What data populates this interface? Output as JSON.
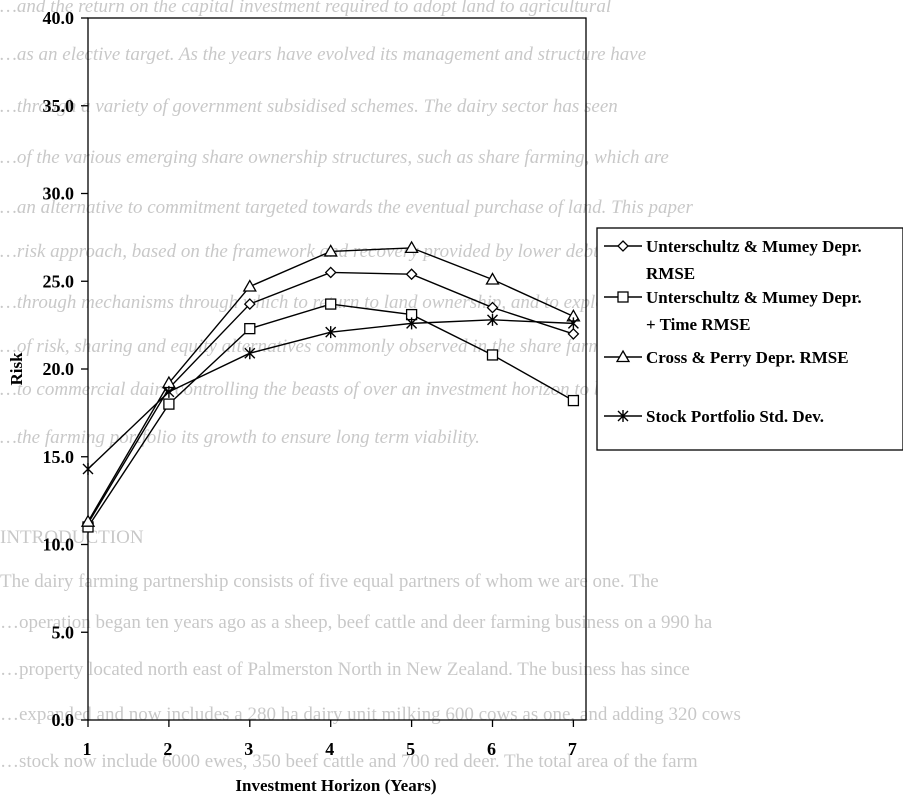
{
  "background_text": [
    {
      "text": "…and the return on the capital investment required to adopt land to agricultural",
      "style": "italic"
    },
    {
      "text": "…as an elective target. As the years have evolved its management and structure have",
      "style": "italic"
    },
    {
      "text": "…through a variety of government subsidised schemes. The dairy sector has seen",
      "style": "italic"
    },
    {
      "text": "…of the various emerging share ownership structures, such as share farming, which are",
      "style": "italic"
    },
    {
      "text": "…an alternative to commitment targeted towards the eventual purchase of land. This paper",
      "style": "italic"
    },
    {
      "text": "…risk approach, based on the framework and recovery provided by lower debt",
      "style": "italic"
    },
    {
      "text": "…through mechanisms through which to return to land ownership, and to explore the viability",
      "style": "italic"
    },
    {
      "text": "…of risk, sharing and equity alternatives commonly observed in the share farming sector",
      "style": "italic"
    },
    {
      "text": "…to commercial dairy controlling the beasts of over an investment horizon to be held",
      "style": "italic"
    },
    {
      "text": "…the farming portfolio its growth to ensure long term viability.",
      "style": "italic"
    },
    {
      "text": "INTRODUCTION",
      "style": "normal"
    },
    {
      "text": "The dairy farming partnership consists of five equal partners of whom we are one. The",
      "style": "normal"
    },
    {
      "text": "…operation began ten years ago as a sheep, beef cattle and deer farming business on a 990 ha",
      "style": "normal"
    },
    {
      "text": "…property located north east of Palmerston North in New Zealand. The business has since",
      "style": "normal"
    },
    {
      "text": "…expanded and now includes a 280 ha dairy unit milking 600 cows as one, and adding 320 cows",
      "style": "normal"
    },
    {
      "text": "…stock now include 6000 ewes, 350 beef cattle and 700 red deer. The total area of the farm",
      "style": "normal"
    }
  ],
  "chart_data": {
    "type": "line",
    "xlabel": "Investment Horizon (Years)",
    "ylabel": "Risk",
    "x": [
      1,
      2,
      3,
      4,
      5,
      6,
      7
    ],
    "x_tick_labels": [
      "1",
      "2",
      "3",
      "4",
      "5",
      "6",
      "7"
    ],
    "ylim": [
      0,
      40
    ],
    "y_ticks": [
      0,
      5,
      10,
      15,
      20,
      25,
      30,
      35,
      40
    ],
    "y_tick_labels": [
      "0.0",
      "5.0",
      "10.0",
      "15.0",
      "20.0",
      "25.0",
      "30.0",
      "35.0",
      "40.0"
    ],
    "grid": false,
    "legend_position": "right",
    "series": [
      {
        "name": "Unterschultz & Mumey Depr. RMSE",
        "legend_lines": [
          "Unterschultz & Mumey Depr.",
          "RMSE"
        ],
        "marker": "diamond",
        "values": [
          11.2,
          18.9,
          23.7,
          25.5,
          25.4,
          23.5,
          22.0
        ]
      },
      {
        "name": "Unterschultz & Mumey Depr. + Time RMSE",
        "legend_lines": [
          "Unterschultz & Mumey Depr.",
          "+ Time RMSE"
        ],
        "marker": "square",
        "values": [
          11.0,
          18.0,
          22.3,
          23.7,
          23.1,
          20.8,
          18.2
        ]
      },
      {
        "name": "Cross & Perry Depr. RMSE",
        "legend_lines": [
          "Cross & Perry Depr. RMSE"
        ],
        "marker": "triangle",
        "values": [
          11.3,
          19.2,
          24.7,
          26.7,
          26.9,
          25.1,
          23.0
        ]
      },
      {
        "name": "Stock Portfolio Std. Dev.",
        "legend_lines": [
          "Stock Portfolio Std. Dev."
        ],
        "marker": "star",
        "values": [
          14.3,
          18.7,
          20.9,
          22.1,
          22.6,
          22.8,
          22.6
        ]
      }
    ]
  }
}
